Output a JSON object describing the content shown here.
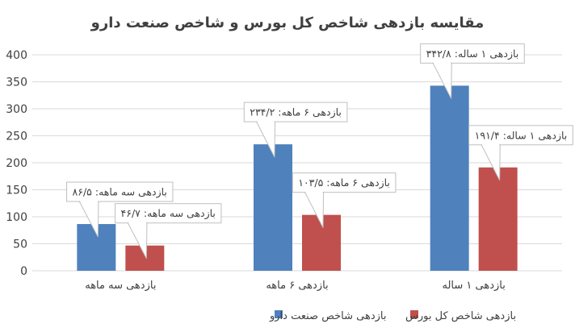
{
  "chart_data": {
    "type": "bar",
    "title": "مقایسه بازدهی شاخص کل بورس و شاخص صنعت دارو",
    "categories": [
      "بازدهی سه ماهه",
      "بازدهی ۶ ماهه",
      "بازدهی ۱ ساله"
    ],
    "ylim": [
      0,
      400
    ],
    "yticks": [
      0,
      50,
      100,
      150,
      200,
      250,
      300,
      350,
      400
    ],
    "grid": true,
    "legend_position": "bottom",
    "series": [
      {
        "name": "بازدهی شاخص صنعت دارو",
        "color": "#4f81bd",
        "values": [
          86.5,
          234.2,
          342.8
        ],
        "labels": [
          "بازدهی سه ماهه: ۸۶/۵",
          "بازدهی ۶ ماهه: ۲۳۴/۲",
          "بازدهی ۱ ساله: ۳۴۲/۸"
        ]
      },
      {
        "name": "بازدهی شاخص کل بورس",
        "color": "#c0504d",
        "values": [
          46.7,
          103.5,
          191.4
        ],
        "labels": [
          "بازدهی سه ماهه: ۴۶/۷",
          "بازدهی ۶ ماهه: ۱۰۳/۵",
          "بازدهی ۱ ساله: ۱۹۱/۴"
        ]
      }
    ]
  }
}
